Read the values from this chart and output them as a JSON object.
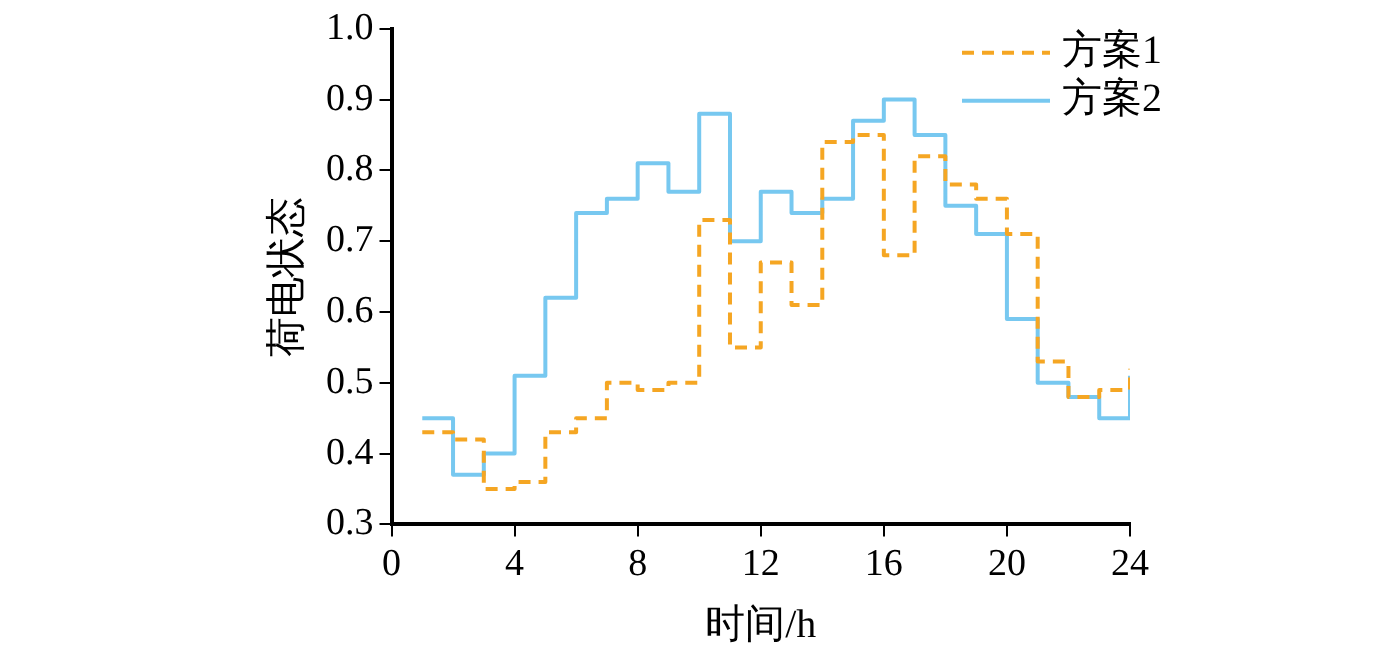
{
  "chart_data": {
    "type": "step",
    "xlabel": "时间/h",
    "ylabel": "荷电状态",
    "x": [
      1,
      2,
      3,
      4,
      5,
      6,
      7,
      8,
      9,
      10,
      11,
      12,
      13,
      14,
      15,
      16,
      17,
      18,
      19,
      20,
      21,
      22,
      23,
      24
    ],
    "series": [
      {
        "name": "方案1",
        "color": "#f5a623",
        "line_style": "dashed",
        "values": [
          0.43,
          0.42,
          0.35,
          0.36,
          0.43,
          0.45,
          0.5,
          0.49,
          0.5,
          0.73,
          0.55,
          0.67,
          0.61,
          0.84,
          0.85,
          0.68,
          0.82,
          0.78,
          0.76,
          0.71,
          0.53,
          0.48,
          0.49,
          0.52
        ]
      },
      {
        "name": "方案2",
        "color": "#77c8f0",
        "line_style": "solid",
        "values": [
          0.45,
          0.37,
          0.4,
          0.51,
          0.62,
          0.74,
          0.76,
          0.81,
          0.77,
          0.88,
          0.7,
          0.77,
          0.74,
          0.76,
          0.87,
          0.9,
          0.85,
          0.75,
          0.71,
          0.59,
          0.5,
          0.48,
          0.45,
          0.51
        ]
      }
    ],
    "xlim": [
      0,
      24
    ],
    "xticks": [
      0,
      4,
      8,
      12,
      16,
      20,
      24
    ],
    "ylim": [
      0.3,
      1.0
    ],
    "yticks": [
      {
        "value": 0.3,
        "label": "0.3"
      },
      {
        "value": 0.4,
        "label": "0.4"
      },
      {
        "value": 0.5,
        "label": "0.5"
      },
      {
        "value": 0.6,
        "label": "0.6"
      },
      {
        "value": 0.7,
        "label": "0.7"
      },
      {
        "value": 0.8,
        "label": "0.8"
      },
      {
        "value": 0.9,
        "label": "0.9"
      },
      {
        "value": 1.0,
        "label": "1.0"
      }
    ],
    "grid": false,
    "legend": "top right",
    "marker": "none"
  }
}
